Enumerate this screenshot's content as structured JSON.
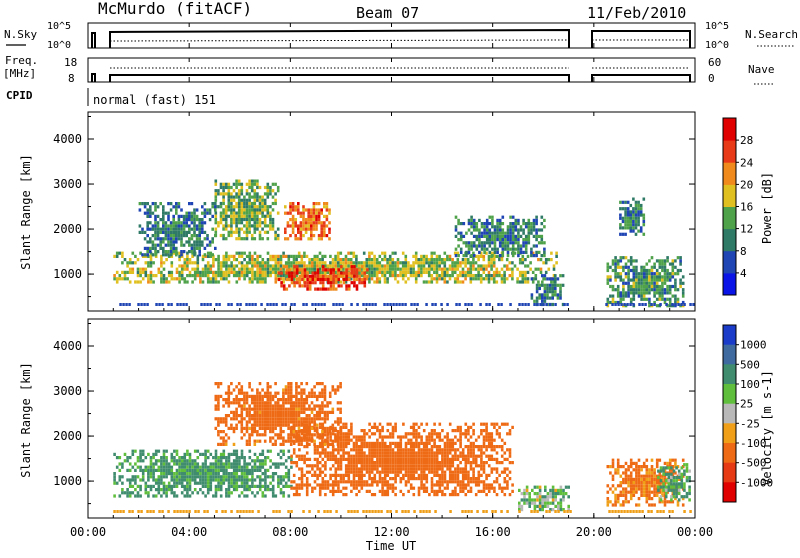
{
  "header": {
    "radar": "McMurdo (fitACF)",
    "beam": "Beam 07",
    "date": "11/Feb/2010"
  },
  "strip": {
    "nsky_label": "N.Sky",
    "nsky_ticks": [
      "10^5",
      "10^0"
    ],
    "nsearch_label": "N.Search",
    "nsearch_ticks": [
      "10^5",
      "10^0"
    ],
    "freq_label_1": "Freq.",
    "freq_label_2": "[MHz]",
    "freq_ticks": [
      "18",
      "8"
    ],
    "nave_label": "Nave",
    "nave_ticks": [
      "60",
      "0"
    ],
    "cpid_label": "CPID",
    "cpid_value": "normal (fast) 151"
  },
  "chart_data": [
    {
      "type": "heatmap",
      "title": "",
      "xlabel": "Time UT",
      "ylabel": "Slant Range [km]",
      "xlim": [
        "00:00",
        "24:00"
      ],
      "ylim": [
        180,
        4600
      ],
      "x_ticks": [
        "00:00",
        "04:00",
        "08:00",
        "12:00",
        "16:00",
        "20:00",
        "00:00"
      ],
      "y_ticks": [
        1000,
        2000,
        3000,
        4000
      ],
      "colorbar": {
        "label": "Power [dB]",
        "ticks": [
          4,
          8,
          12,
          16,
          20,
          24,
          28
        ],
        "colors": [
          "#0a14e6",
          "#1f44b4",
          "#2f7a66",
          "#4fa24a",
          "#e0c020",
          "#f08a1c",
          "#e83a18",
          "#e00000"
        ]
      },
      "data_gaps_utc": [
        [
          "00:00",
          "00:30"
        ],
        [
          "19:05",
          "20:25"
        ]
      ],
      "echo_regions": [
        {
          "t_start": "01:00",
          "t_end": "18:30",
          "r_start": 800,
          "r_end": 1500,
          "power_db": 16
        },
        {
          "t_start": "07:30",
          "t_end": "11:00",
          "r_start": 700,
          "r_end": 1200,
          "power_db": 26
        },
        {
          "t_start": "07:45",
          "t_end": "09:30",
          "r_start": 1800,
          "r_end": 2600,
          "power_db": 24
        },
        {
          "t_start": "05:00",
          "t_end": "07:30",
          "r_start": 1800,
          "r_end": 3100,
          "power_db": 14
        },
        {
          "t_start": "02:00",
          "t_end": "05:00",
          "r_start": 1400,
          "r_end": 2600,
          "power_db": 10
        },
        {
          "t_start": "14:30",
          "t_end": "18:00",
          "r_start": 1400,
          "r_end": 2300,
          "power_db": 10
        },
        {
          "t_start": "17:30",
          "t_end": "18:50",
          "r_start": 300,
          "r_end": 1000,
          "power_db": 10
        },
        {
          "t_start": "20:30",
          "t_end": "23:30",
          "r_start": 300,
          "r_end": 1400,
          "power_db": 12
        },
        {
          "t_start": "21:00",
          "t_end": "22:00",
          "r_start": 1900,
          "r_end": 2700,
          "power_db": 10
        }
      ]
    },
    {
      "type": "heatmap",
      "title": "",
      "xlabel": "Time UT",
      "ylabel": "Slant Range [km]",
      "xlim": [
        "00:00",
        "24:00"
      ],
      "ylim": [
        180,
        4600
      ],
      "x_ticks": [
        "00:00",
        "04:00",
        "08:00",
        "12:00",
        "16:00",
        "20:00",
        "00:00"
      ],
      "y_ticks": [
        1000,
        2000,
        3000,
        4000
      ],
      "colorbar": {
        "label": "Velocity [m s-1]",
        "ticks": [
          1000,
          500,
          100,
          25,
          -25,
          -100,
          -500,
          -1000
        ],
        "colors": [
          "#1a3cc8",
          "#3e6aa0",
          "#3f8c6e",
          "#5fbf3c",
          "#b8b8b8",
          "#f0a018",
          "#ef6a14",
          "#e63a14",
          "#e00000"
        ]
      },
      "data_gaps_utc": [
        [
          "00:00",
          "00:30"
        ],
        [
          "19:05",
          "20:25"
        ]
      ],
      "echo_regions": [
        {
          "t_start": "01:00",
          "t_end": "08:00",
          "r_start": 700,
          "r_end": 1700,
          "velocity_ms": 150
        },
        {
          "t_start": "08:00",
          "t_end": "16:50",
          "r_start": 700,
          "r_end": 2300,
          "velocity_ms": -250
        },
        {
          "t_start": "05:00",
          "t_end": "10:00",
          "r_start": 1800,
          "r_end": 3200,
          "velocity_ms": -200
        },
        {
          "t_start": "17:00",
          "t_end": "19:00",
          "r_start": 400,
          "r_end": 900,
          "velocity_ms": 60
        },
        {
          "t_start": "20:30",
          "t_end": "23:30",
          "r_start": 500,
          "r_end": 1500,
          "velocity_ms": -150
        },
        {
          "t_start": "22:30",
          "t_end": "23:50",
          "r_start": 600,
          "r_end": 1400,
          "velocity_ms": 120
        }
      ]
    }
  ]
}
